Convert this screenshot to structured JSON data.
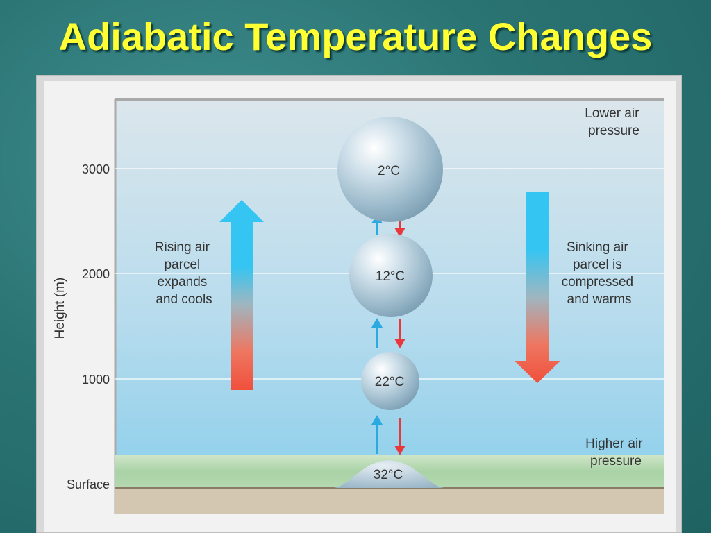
{
  "title": "Adiabatic Temperature Changes",
  "y_axis": {
    "label": "Height (m)",
    "ticks": [
      "3000",
      "2000",
      "1000",
      "Surface"
    ]
  },
  "annotations": {
    "top_right": [
      "Lower air",
      "pressure"
    ],
    "bottom_right": [
      "Higher air",
      "pressure"
    ],
    "rising": [
      "Rising air",
      "parcel",
      "expands",
      "and cools"
    ],
    "sinking": [
      "Sinking air",
      "parcel is",
      "compressed",
      "and warms"
    ]
  },
  "parcels": [
    {
      "label": "2°C",
      "height_m": 3000
    },
    {
      "label": "12°C",
      "height_m": 2000
    },
    {
      "label": "22°C",
      "height_m": 1000
    },
    {
      "label": "32°C",
      "height_m": 0
    }
  ],
  "colors": {
    "title": "#ffff33",
    "rising_arrow_top": "#35c5f2",
    "rising_arrow_bottom": "#f0503c",
    "sinking_arrow_top": "#35c5f2",
    "sinking_arrow_bottom": "#f0503c",
    "up_arrow": "#2aaae0",
    "down_arrow": "#e8383c"
  }
}
